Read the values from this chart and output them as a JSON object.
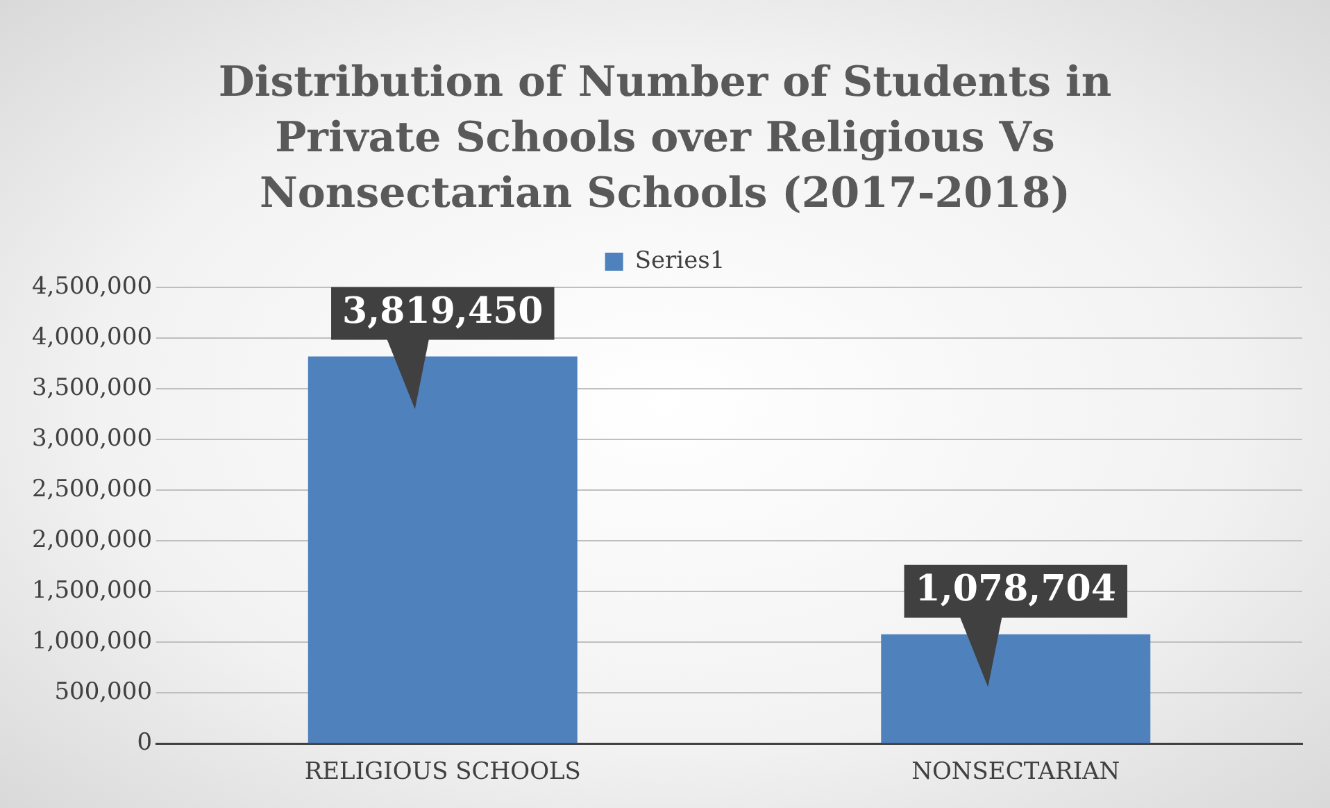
{
  "chart_data": {
    "type": "bar",
    "title": "Distribution of Number of Students in Private Schools over Religious Vs Nonsectarian Schools (2017-2018)",
    "categories": [
      "RELIGIOUS SCHOOLS",
      "NONSECTARIAN"
    ],
    "series": [
      {
        "name": "Series1",
        "color": "#4f81bd",
        "values": [
          3819450,
          1078704
        ]
      }
    ],
    "ylim": [
      0,
      4500000
    ],
    "yticks": [
      {
        "value": 0,
        "label": "0"
      },
      {
        "value": 500000,
        "label": "500,000"
      },
      {
        "value": 1000000,
        "label": "1,000,000"
      },
      {
        "value": 1500000,
        "label": "1,500,000"
      },
      {
        "value": 2000000,
        "label": "2,000,000"
      },
      {
        "value": 2500000,
        "label": "2,500,000"
      },
      {
        "value": 3000000,
        "label": "3,000,000"
      },
      {
        "value": 3500000,
        "label": "3,500,000"
      },
      {
        "value": 4000000,
        "label": "4,000,000"
      },
      {
        "value": 4500000,
        "label": "4,500,000"
      }
    ],
    "grid": "y",
    "legend": "top",
    "value_labels": [
      "3,819,450",
      "1,078,704"
    ]
  }
}
